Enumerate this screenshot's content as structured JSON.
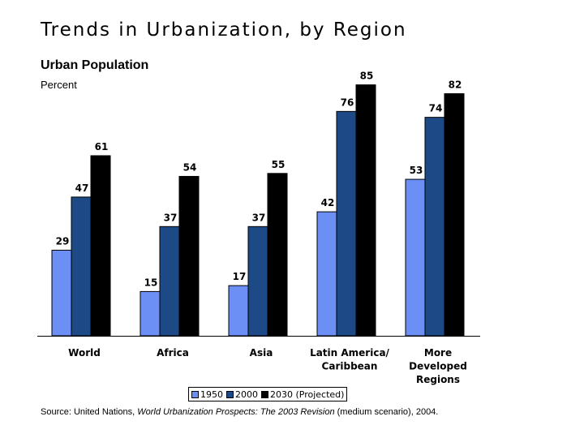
{
  "title": "Trends in Urbanization, by Region",
  "subtitle": "Urban Population",
  "unit": "Percent",
  "source": {
    "prefix": "Source: United Nations, ",
    "work": "World Urbanization Prospects: The 2003 Revision",
    "suffix": " (medium scenario), 2004."
  },
  "colors": {
    "s1950": "#6b8ff5",
    "s2000": "#1d4a87",
    "s2030": "#000000"
  },
  "chart_data": {
    "type": "bar",
    "categories": [
      "World",
      "Africa",
      "Asia",
      "Latin America/\nCaribbean",
      "More\nDeveloped\nRegions"
    ],
    "series": [
      {
        "name": "1950",
        "values": [
          29,
          15,
          17,
          42,
          53
        ]
      },
      {
        "name": "2000",
        "values": [
          47,
          37,
          37,
          76,
          74
        ]
      },
      {
        "name": "2030 (Projected)",
        "values": [
          61,
          54,
          55,
          85,
          82
        ]
      }
    ],
    "title": "Urban Population",
    "ylabel": "Percent",
    "ylim": [
      0,
      100
    ],
    "grid": false,
    "legend": "bottom"
  }
}
